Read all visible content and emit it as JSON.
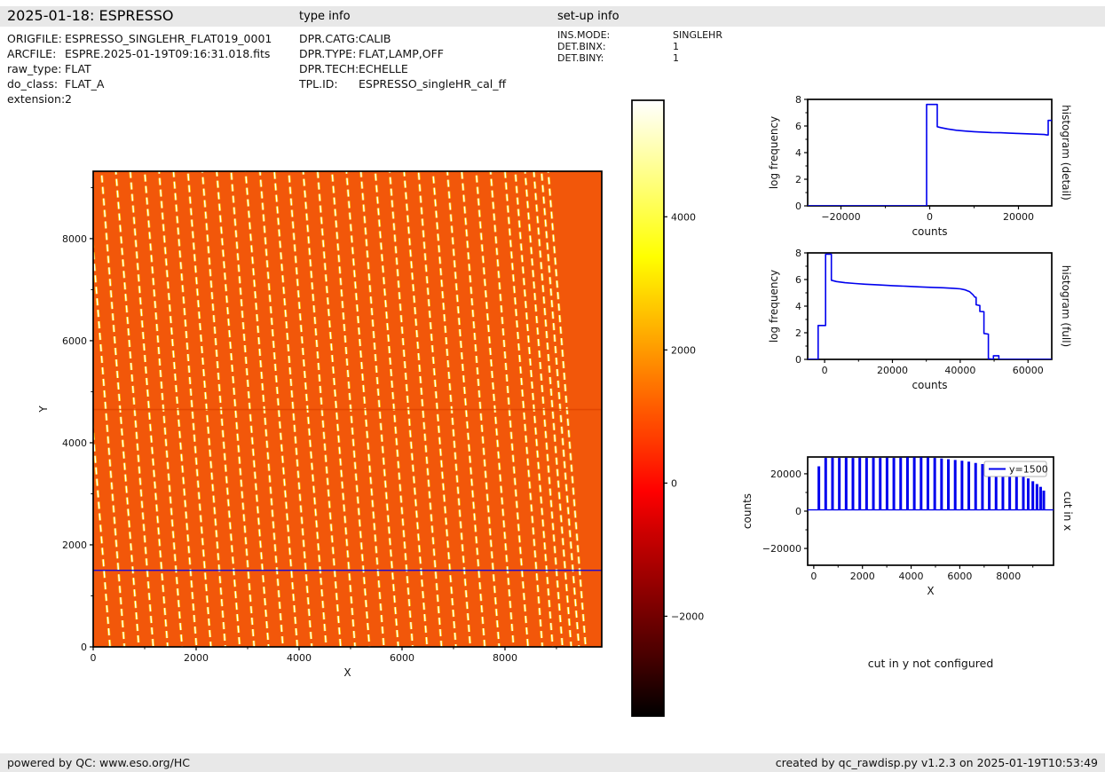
{
  "header": {
    "title": "2025-01-18: ESPRESSO",
    "type_info_label": "type info",
    "setup_info_label": "set-up info"
  },
  "file_info": {
    "rows": [
      {
        "label": "ORIGFILE:",
        "value": "ESPRESSO_SINGLEHR_FLAT019_0001"
      },
      {
        "label": "ARCFILE:",
        "value": "ESPRE.2025-01-19T09:16:31.018.fits"
      },
      {
        "label": "raw_type:",
        "value": "FLAT"
      },
      {
        "label": "do_class:",
        "value": "FLAT_A"
      },
      {
        "label": "extension:",
        "value": "2"
      }
    ]
  },
  "type_info": {
    "rows": [
      {
        "label": "DPR.CATG:",
        "value": "CALIB"
      },
      {
        "label": "DPR.TYPE:",
        "value": "FLAT,LAMP,OFF"
      },
      {
        "label": "DPR.TECH:",
        "value": "ECHELLE"
      },
      {
        "label": "TPL.ID:",
        "value": "ESPRESSO_singleHR_cal_ff"
      }
    ]
  },
  "setup_info": {
    "rows": [
      {
        "label": "INS.MODE:",
        "value": "SINGLEHR"
      },
      {
        "label": "DET.BINX:",
        "value": "1"
      },
      {
        "label": "DET.BINY:",
        "value": "1"
      }
    ]
  },
  "cut_in_y_message": "cut in y not configured",
  "footer": {
    "left": "powered by QC: www.eso.org/HC",
    "right": "created by qc_rawdisp.py v1.2.3 on 2025-01-19T10:53:49"
  },
  "chart_data": [
    {
      "id": "main-image",
      "type": "heatmap",
      "title": "",
      "xlabel": "X",
      "ylabel": "Y",
      "xlim": [
        0,
        9880
      ],
      "ylim": [
        0,
        9320
      ],
      "xticks": [
        {
          "v": 0,
          "label": "0"
        },
        {
          "v": 2000,
          "label": "2000"
        },
        {
          "v": 4000,
          "label": "4000"
        },
        {
          "v": 6000,
          "label": "6000"
        },
        {
          "v": 8000,
          "label": "8000"
        }
      ],
      "xminor": [
        1000,
        3000,
        5000,
        7000,
        9000
      ],
      "yticks": [
        {
          "v": 0,
          "label": "0"
        },
        {
          "v": 2000,
          "label": "2000"
        },
        {
          "v": 4000,
          "label": "4000"
        },
        {
          "v": 6000,
          "label": "6000"
        },
        {
          "v": 8000,
          "label": "8000"
        }
      ],
      "yminor": [
        1000,
        3000,
        5000,
        7000,
        9000
      ],
      "background_color": "#F2570A",
      "orders": {
        "description": "echelle order traces: tilted dashed bright stripes on orange flat background",
        "x_at_cut": [
          210,
          490,
          770,
          1050,
          1330,
          1610,
          1890,
          2170,
          2450,
          2730,
          3010,
          3290,
          3570,
          3850,
          4130,
          4410,
          4690,
          4970,
          5250,
          5530,
          5810,
          6090,
          6370,
          6650,
          6930,
          7210,
          7490,
          7770,
          8050,
          8330,
          8610,
          8810,
          9000,
          9170,
          9320,
          9450
        ],
        "tilt_dx_per_dy": -0.078,
        "dash_core_color": "#FFFFFF",
        "dash_halo_color": "#FFBE00"
      },
      "detector_gap_y": 4650,
      "cut_line": {
        "y": 1500,
        "color": "#0000EE"
      },
      "colorbar": {
        "colormap": "hot",
        "vmin": -3500,
        "vmax": 5750,
        "ticks": [
          {
            "v": 4000,
            "label": "4000"
          },
          {
            "v": 2000,
            "label": "2000"
          },
          {
            "v": 0,
            "label": "0"
          },
          {
            "v": -2000,
            "label": "−2000"
          }
        ]
      }
    },
    {
      "id": "hist-detail",
      "type": "line",
      "xlabel": "counts",
      "ylabel": "log frequency",
      "right_label": "histogram (detail)",
      "xlim": [
        -27500,
        27500
      ],
      "ylim": [
        0,
        8
      ],
      "xticks": [
        {
          "v": -20000,
          "label": "−20000"
        },
        {
          "v": 0,
          "label": "0"
        },
        {
          "v": 20000,
          "label": "20000"
        }
      ],
      "xminor": [
        -10000,
        10000
      ],
      "yticks": [
        {
          "v": 0,
          "label": "0"
        },
        {
          "v": 2,
          "label": "2"
        },
        {
          "v": 4,
          "label": "4"
        },
        {
          "v": 6,
          "label": "6"
        },
        {
          "v": 8,
          "label": "8"
        }
      ],
      "yminor": [
        1,
        3,
        5,
        7
      ],
      "line_color": "#0000EE",
      "points": [
        [
          -27500,
          0
        ],
        [
          -700,
          0
        ],
        [
          -700,
          7.62
        ],
        [
          1700,
          7.62
        ],
        [
          1700,
          5.95
        ],
        [
          2500,
          5.88
        ],
        [
          4000,
          5.78
        ],
        [
          6000,
          5.68
        ],
        [
          8000,
          5.62
        ],
        [
          10000,
          5.57
        ],
        [
          12000,
          5.54
        ],
        [
          14000,
          5.51
        ],
        [
          16000,
          5.49
        ],
        [
          18000,
          5.46
        ],
        [
          20000,
          5.44
        ],
        [
          22000,
          5.41
        ],
        [
          24000,
          5.39
        ],
        [
          25800,
          5.36
        ],
        [
          26400,
          5.33
        ],
        [
          26700,
          5.33
        ],
        [
          26700,
          6.42
        ],
        [
          27500,
          6.42
        ]
      ]
    },
    {
      "id": "hist-full",
      "type": "line",
      "xlabel": "counts",
      "ylabel": "log frequency",
      "right_label": "histogram (full)",
      "xlim": [
        -5000,
        67000
      ],
      "ylim": [
        0,
        8
      ],
      "xticks": [
        {
          "v": 0,
          "label": "0"
        },
        {
          "v": 20000,
          "label": "20000"
        },
        {
          "v": 40000,
          "label": "40000"
        },
        {
          "v": 60000,
          "label": "60000"
        }
      ],
      "xminor": [
        10000,
        30000,
        50000
      ],
      "yticks": [
        {
          "v": 0,
          "label": "0"
        },
        {
          "v": 2,
          "label": "2"
        },
        {
          "v": 4,
          "label": "4"
        },
        {
          "v": 6,
          "label": "6"
        },
        {
          "v": 8,
          "label": "8"
        }
      ],
      "yminor": [
        1,
        3,
        5,
        7
      ],
      "line_color": "#0000EE",
      "points": [
        [
          -5000,
          0
        ],
        [
          -1900,
          0
        ],
        [
          -1900,
          2.55
        ],
        [
          300,
          2.55
        ],
        [
          300,
          7.9
        ],
        [
          2000,
          7.9
        ],
        [
          2000,
          5.95
        ],
        [
          3500,
          5.85
        ],
        [
          6000,
          5.76
        ],
        [
          9000,
          5.7
        ],
        [
          12000,
          5.65
        ],
        [
          16000,
          5.59
        ],
        [
          20000,
          5.54
        ],
        [
          24000,
          5.49
        ],
        [
          28000,
          5.45
        ],
        [
          32000,
          5.41
        ],
        [
          35000,
          5.38
        ],
        [
          38000,
          5.34
        ],
        [
          40000,
          5.3
        ],
        [
          41500,
          5.22
        ],
        [
          42800,
          5.08
        ],
        [
          43800,
          4.85
        ],
        [
          44300,
          4.68
        ],
        [
          44700,
          4.66
        ],
        [
          44700,
          4.1
        ],
        [
          45800,
          4.05
        ],
        [
          45800,
          3.6
        ],
        [
          47000,
          3.58
        ],
        [
          47000,
          1.95
        ],
        [
          48300,
          1.9
        ],
        [
          48300,
          0.05
        ],
        [
          49300,
          0.02
        ],
        [
          49800,
          0
        ],
        [
          49800,
          0.27
        ],
        [
          51400,
          0.27
        ],
        [
          51400,
          0
        ],
        [
          67000,
          0
        ]
      ]
    },
    {
      "id": "cut-in-x",
      "type": "spikes",
      "xlabel": "X",
      "ylabel": "counts",
      "right_label": "cut in x",
      "legend_label": "y=1500",
      "xlim": [
        -250,
        9850
      ],
      "ylim": [
        -29000,
        29000
      ],
      "xticks": [
        {
          "v": 0,
          "label": "0"
        },
        {
          "v": 2000,
          "label": "2000"
        },
        {
          "v": 4000,
          "label": "4000"
        },
        {
          "v": 6000,
          "label": "6000"
        },
        {
          "v": 8000,
          "label": "8000"
        }
      ],
      "xminor": [
        1000,
        3000,
        5000,
        7000,
        9000
      ],
      "yticks": [
        {
          "v": -20000,
          "label": "−20000"
        },
        {
          "v": 0,
          "label": "0"
        },
        {
          "v": 20000,
          "label": "20000"
        }
      ],
      "yminor": [
        -10000,
        10000
      ],
      "line_color": "#0000EE",
      "baseline": 700,
      "bar_x": [
        210,
        490,
        770,
        1050,
        1330,
        1610,
        1890,
        2170,
        2450,
        2730,
        3010,
        3290,
        3570,
        3850,
        4130,
        4410,
        4690,
        4970,
        5250,
        5530,
        5810,
        6090,
        6370,
        6650,
        6930,
        7210,
        7490,
        7770,
        8050,
        8330,
        8610,
        8810,
        9000,
        9170,
        9320,
        9450
      ],
      "bar_heights": [
        24000,
        28500,
        28600,
        28500,
        28600,
        28500,
        28600,
        28500,
        28600,
        28500,
        28600,
        28500,
        28600,
        28800,
        28800,
        28800,
        28700,
        28500,
        28200,
        27800,
        27400,
        27000,
        26500,
        25800,
        25200,
        24400,
        23400,
        22400,
        21200,
        20000,
        18800,
        17500,
        16000,
        14500,
        13000,
        11000
      ]
    }
  ]
}
